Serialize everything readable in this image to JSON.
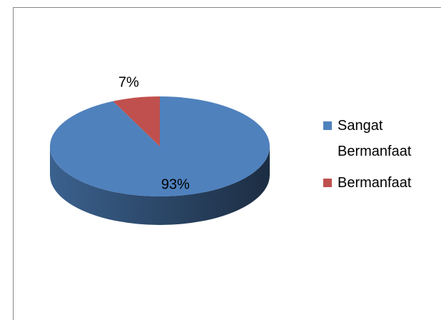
{
  "chart_data": {
    "type": "pie",
    "categories": [
      "Sangat Bermanfaat",
      "Bermanfaat"
    ],
    "values": [
      93,
      7
    ],
    "value_labels": [
      "93%",
      "7%"
    ],
    "colors": [
      "#4f81bd",
      "#c0504d"
    ],
    "legend": "right"
  }
}
